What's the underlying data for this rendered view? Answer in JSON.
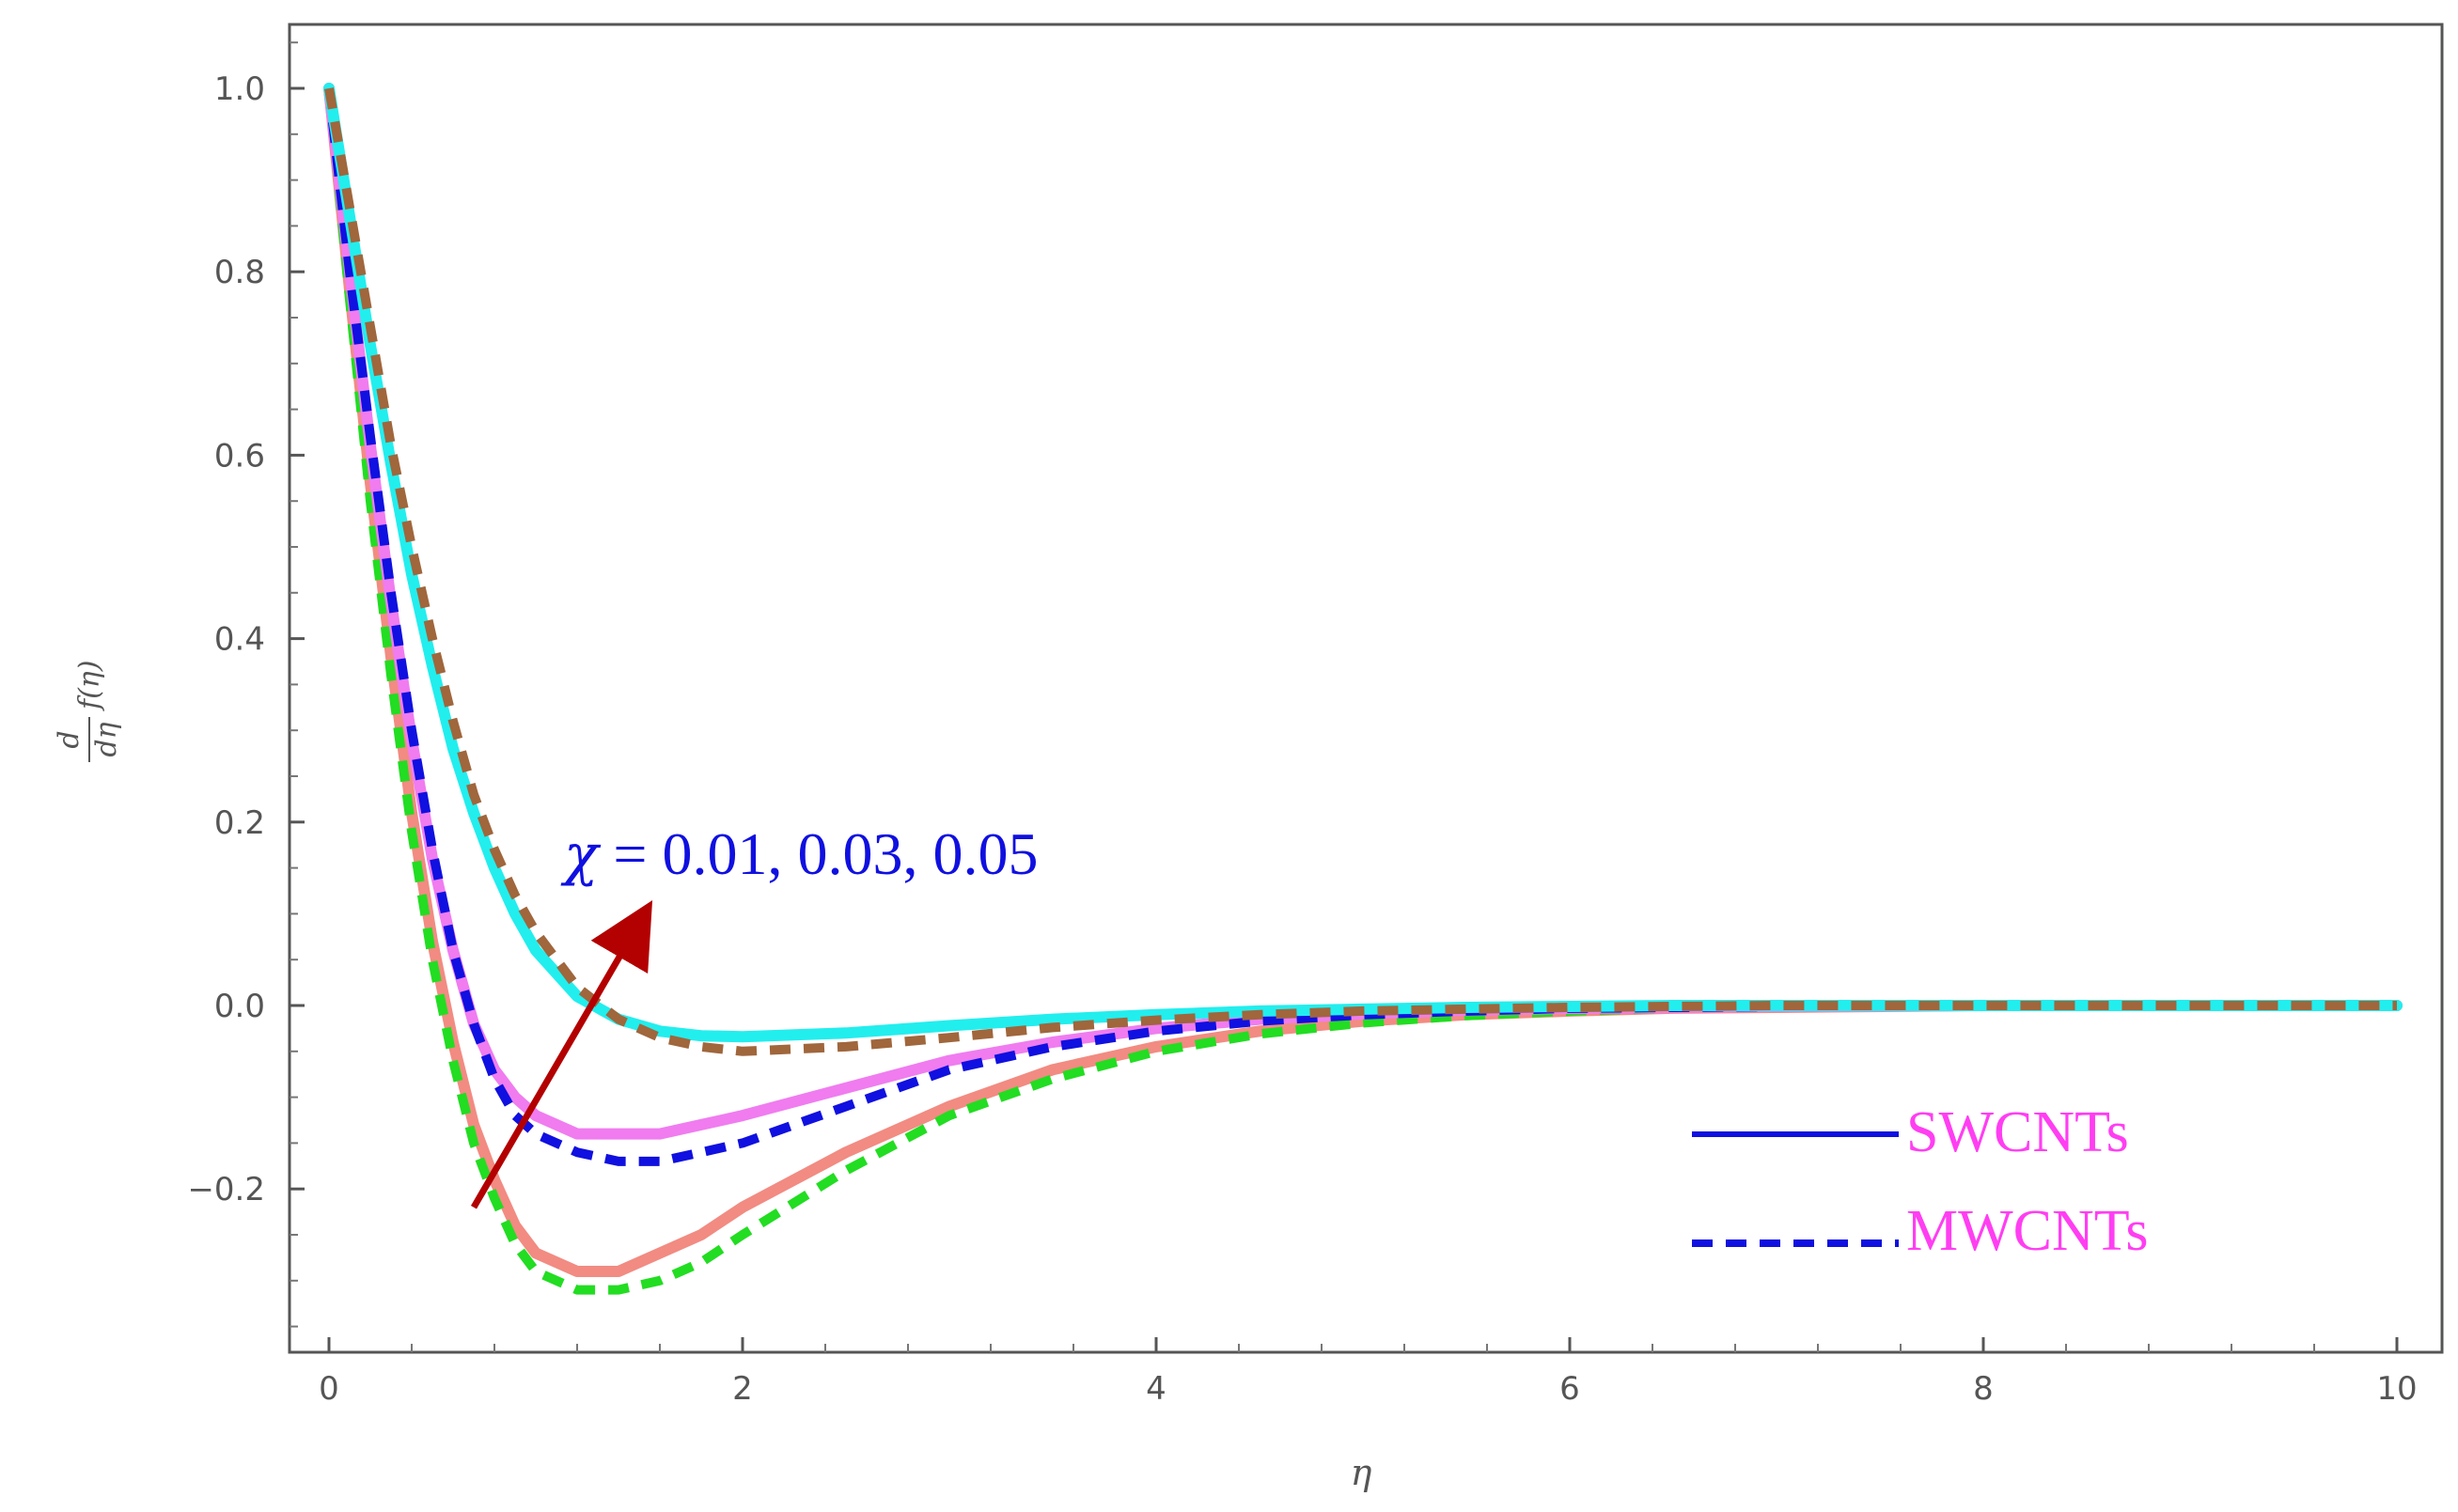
{
  "chart_data": {
    "type": "line",
    "xlabel": "η",
    "ylabel": {
      "numerator": "d",
      "denominator": "dη",
      "function": "f(η)"
    },
    "xlim": [
      0,
      10
    ],
    "ylim": [
      -0.36,
      1.04
    ],
    "x_ticks": [
      0,
      2,
      4,
      6,
      8,
      10
    ],
    "y_ticks": [
      -0.2,
      0.0,
      0.2,
      0.4,
      0.6,
      0.8,
      1.0
    ],
    "x_tick_labels": [
      "0",
      "2",
      "4",
      "6",
      "8",
      "10"
    ],
    "y_tick_labels": [
      "−0.2",
      "0.0",
      "0.2",
      "0.4",
      "0.6",
      "0.8",
      "1.0"
    ],
    "grid": false,
    "annotation": {
      "chi": "χ",
      "text": " = 0.01, 0.03, 0.05",
      "arrow_from": [
        0.7,
        -0.22
      ],
      "arrow_to": [
        1.5,
        0.09
      ],
      "arrow_color": "#b30000"
    },
    "legend": {
      "placement": "right",
      "entries": [
        {
          "label": "SWCNTs",
          "style": "solid",
          "line_color": "#1010e0"
        },
        {
          "label": "MWCNTs",
          "style": "dashed",
          "line_color": "#1010e0"
        }
      ]
    },
    "series": [
      {
        "style": "solid",
        "color": "#f28b82",
        "x": [
          0,
          0.1,
          0.2,
          0.3,
          0.4,
          0.5,
          0.6,
          0.7,
          0.8,
          0.9,
          1.0,
          1.2,
          1.4,
          1.6,
          1.8,
          2.0,
          2.5,
          3.0,
          3.5,
          4.0,
          4.5,
          5.0,
          5.5,
          6.0,
          6.5,
          7.0,
          8.0,
          9.0,
          10.0
        ],
        "y": [
          1.0,
          0.78,
          0.57,
          0.38,
          0.21,
          0.07,
          -0.04,
          -0.13,
          -0.19,
          -0.24,
          -0.27,
          -0.29,
          -0.29,
          -0.27,
          -0.25,
          -0.22,
          -0.16,
          -0.11,
          -0.07,
          -0.045,
          -0.028,
          -0.017,
          -0.01,
          -0.006,
          -0.003,
          -0.002,
          0.0,
          0.0,
          0.0
        ]
      },
      {
        "style": "dashed",
        "color": "#22dd22",
        "x": [
          0,
          0.1,
          0.2,
          0.3,
          0.4,
          0.5,
          0.6,
          0.7,
          0.8,
          0.9,
          1.0,
          1.2,
          1.4,
          1.6,
          1.8,
          2.0,
          2.5,
          3.0,
          3.5,
          4.0,
          4.5,
          5.0,
          5.5,
          6.0,
          6.5,
          7.0,
          8.0,
          9.0,
          10.0
        ],
        "y": [
          1.0,
          0.77,
          0.55,
          0.36,
          0.19,
          0.05,
          -0.06,
          -0.15,
          -0.21,
          -0.26,
          -0.29,
          -0.31,
          -0.31,
          -0.3,
          -0.28,
          -0.25,
          -0.18,
          -0.12,
          -0.08,
          -0.05,
          -0.031,
          -0.019,
          -0.011,
          -0.006,
          -0.003,
          -0.002,
          0.0,
          0.0,
          0.0
        ]
      },
      {
        "style": "solid",
        "color": "#f07cf0",
        "x": [
          0,
          0.1,
          0.2,
          0.3,
          0.4,
          0.5,
          0.6,
          0.7,
          0.8,
          0.9,
          1.0,
          1.2,
          1.4,
          1.6,
          1.8,
          2.0,
          2.5,
          3.0,
          3.5,
          4.0,
          4.5,
          5.0,
          5.5,
          6.0,
          6.5,
          7.0,
          8.0,
          9.0,
          10.0
        ],
        "y": [
          1.0,
          0.8,
          0.61,
          0.44,
          0.29,
          0.16,
          0.06,
          -0.02,
          -0.07,
          -0.1,
          -0.12,
          -0.14,
          -0.14,
          -0.14,
          -0.13,
          -0.12,
          -0.09,
          -0.06,
          -0.04,
          -0.025,
          -0.015,
          -0.009,
          -0.005,
          -0.003,
          -0.002,
          -0.001,
          0.0,
          0.0,
          0.0
        ]
      },
      {
        "style": "dashed",
        "color": "#1010e0",
        "x": [
          0,
          0.1,
          0.2,
          0.3,
          0.4,
          0.5,
          0.6,
          0.7,
          0.8,
          0.9,
          1.0,
          1.2,
          1.4,
          1.6,
          1.8,
          2.0,
          2.5,
          3.0,
          3.5,
          4.0,
          4.5,
          5.0,
          5.5,
          6.0,
          6.5,
          7.0,
          8.0,
          9.0,
          10.0
        ],
        "y": [
          1.0,
          0.8,
          0.62,
          0.45,
          0.3,
          0.17,
          0.06,
          -0.02,
          -0.08,
          -0.12,
          -0.14,
          -0.16,
          -0.17,
          -0.17,
          -0.16,
          -0.15,
          -0.11,
          -0.07,
          -0.045,
          -0.028,
          -0.017,
          -0.01,
          -0.006,
          -0.003,
          -0.002,
          -0.001,
          0.0,
          0.0,
          0.0
        ]
      },
      {
        "style": "solid",
        "color": "#22eeee",
        "x": [
          0,
          0.1,
          0.2,
          0.3,
          0.4,
          0.5,
          0.6,
          0.7,
          0.8,
          0.9,
          1.0,
          1.2,
          1.4,
          1.6,
          1.8,
          2.0,
          2.5,
          3.0,
          3.5,
          4.0,
          4.5,
          5.0,
          5.5,
          6.0,
          6.5,
          7.0,
          8.0,
          9.0,
          10.0
        ],
        "y": [
          1.0,
          0.86,
          0.72,
          0.59,
          0.47,
          0.37,
          0.28,
          0.21,
          0.15,
          0.1,
          0.06,
          0.01,
          -0.015,
          -0.028,
          -0.033,
          -0.034,
          -0.03,
          -0.022,
          -0.015,
          -0.01,
          -0.006,
          -0.004,
          -0.002,
          -0.001,
          0.0,
          0.0,
          0.0,
          0.0,
          0.0
        ]
      },
      {
        "style": "dashed",
        "color": "#a0663c",
        "x": [
          0,
          0.1,
          0.2,
          0.3,
          0.4,
          0.5,
          0.6,
          0.7,
          0.8,
          0.9,
          1.0,
          1.2,
          1.4,
          1.6,
          1.8,
          2.0,
          2.5,
          3.0,
          3.5,
          4.0,
          4.5,
          5.0,
          5.5,
          6.0,
          6.5,
          7.0,
          8.0,
          9.0,
          10.0
        ],
        "y": [
          1.0,
          0.87,
          0.74,
          0.61,
          0.5,
          0.4,
          0.31,
          0.23,
          0.17,
          0.12,
          0.08,
          0.02,
          -0.015,
          -0.035,
          -0.045,
          -0.05,
          -0.045,
          -0.035,
          -0.024,
          -0.016,
          -0.01,
          -0.006,
          -0.004,
          -0.002,
          -0.001,
          0.0,
          0.0,
          0.0,
          0.0
        ]
      }
    ]
  }
}
